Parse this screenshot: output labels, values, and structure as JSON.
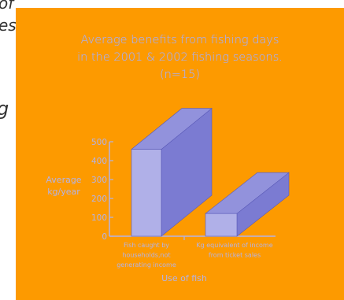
{
  "fragments": [
    "of",
    "es",
    "g"
  ],
  "chart_data": {
    "type": "bar",
    "title_lines": [
      "Average benefits from fishing days",
      "in the 2001 & 2002 fishing seasons.",
      "(n=15)"
    ],
    "ylabel_lines": [
      "Average",
      "kg/year"
    ],
    "xlabel": "Use of fish",
    "categories": [
      [
        "Fish caught by",
        "households,not",
        "generating income"
      ],
      [
        "Kg equivalent of income",
        "from ticket sales"
      ]
    ],
    "values": [
      460,
      120
    ],
    "ylim": [
      0,
      500
    ],
    "yticks": [
      0,
      100,
      200,
      300,
      400,
      500
    ],
    "colors": {
      "background": "#fd9a00",
      "bar_front": "#b0b0e8",
      "bar_top": "#9292dc",
      "bar_side": "#7b7bd2",
      "axis": "#b3b3e6"
    }
  }
}
